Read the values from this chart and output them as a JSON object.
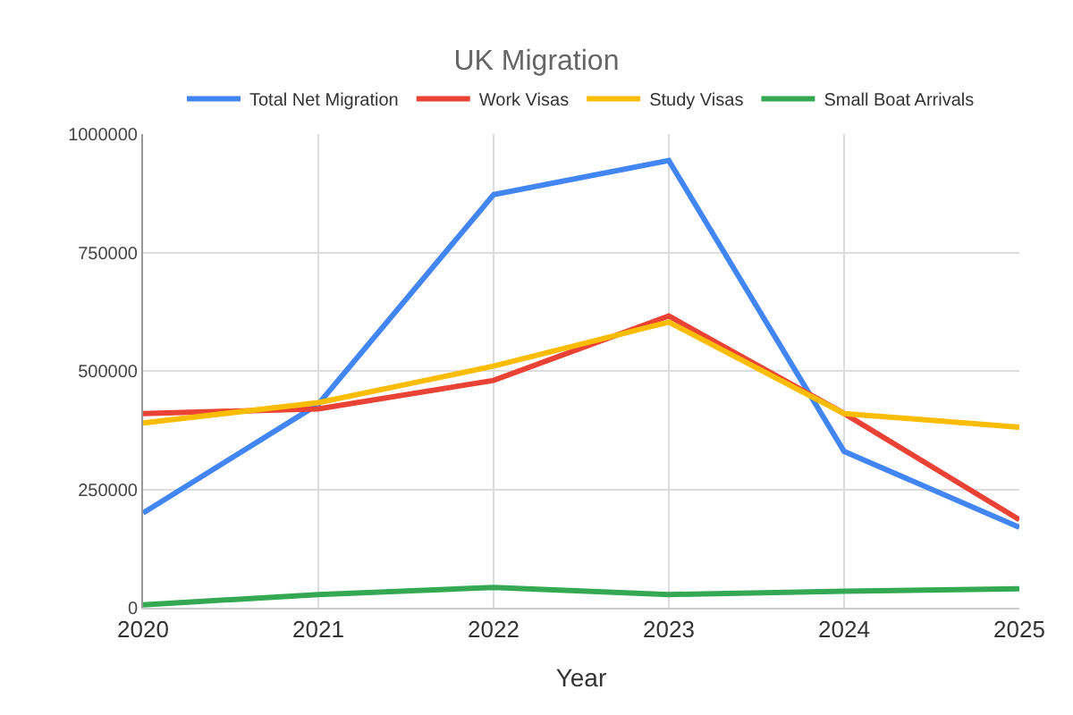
{
  "chart_data": {
    "type": "line",
    "title": "UK Migration",
    "xlabel": "Year",
    "x": [
      2020,
      2021,
      2022,
      2023,
      2024,
      2025
    ],
    "series": [
      {
        "name": "Total Net Migration",
        "color": "#4285f4",
        "values": [
          200000,
          430000,
          872000,
          944000,
          330000,
          170000
        ]
      },
      {
        "name": "Work Visas",
        "color": "#ea4335",
        "values": [
          410000,
          420000,
          480000,
          616000,
          410000,
          186000
        ]
      },
      {
        "name": "Study Visas",
        "color": "#fbbc04",
        "values": [
          390000,
          433000,
          510000,
          603000,
          410000,
          381000
        ]
      },
      {
        "name": "Small Boat Arrivals",
        "color": "#34a853",
        "values": [
          6000,
          28000,
          43000,
          28000,
          35000,
          40000
        ]
      }
    ],
    "xlim": [
      2020,
      2025
    ],
    "xticks": [
      2020,
      2021,
      2022,
      2023,
      2024,
      2025
    ],
    "ylim": [
      0,
      1000000
    ],
    "yticks": [
      0,
      250000,
      500000,
      750000,
      1000000
    ],
    "grid": true,
    "legend": "top",
    "marker": "none",
    "line_style": "solid"
  }
}
